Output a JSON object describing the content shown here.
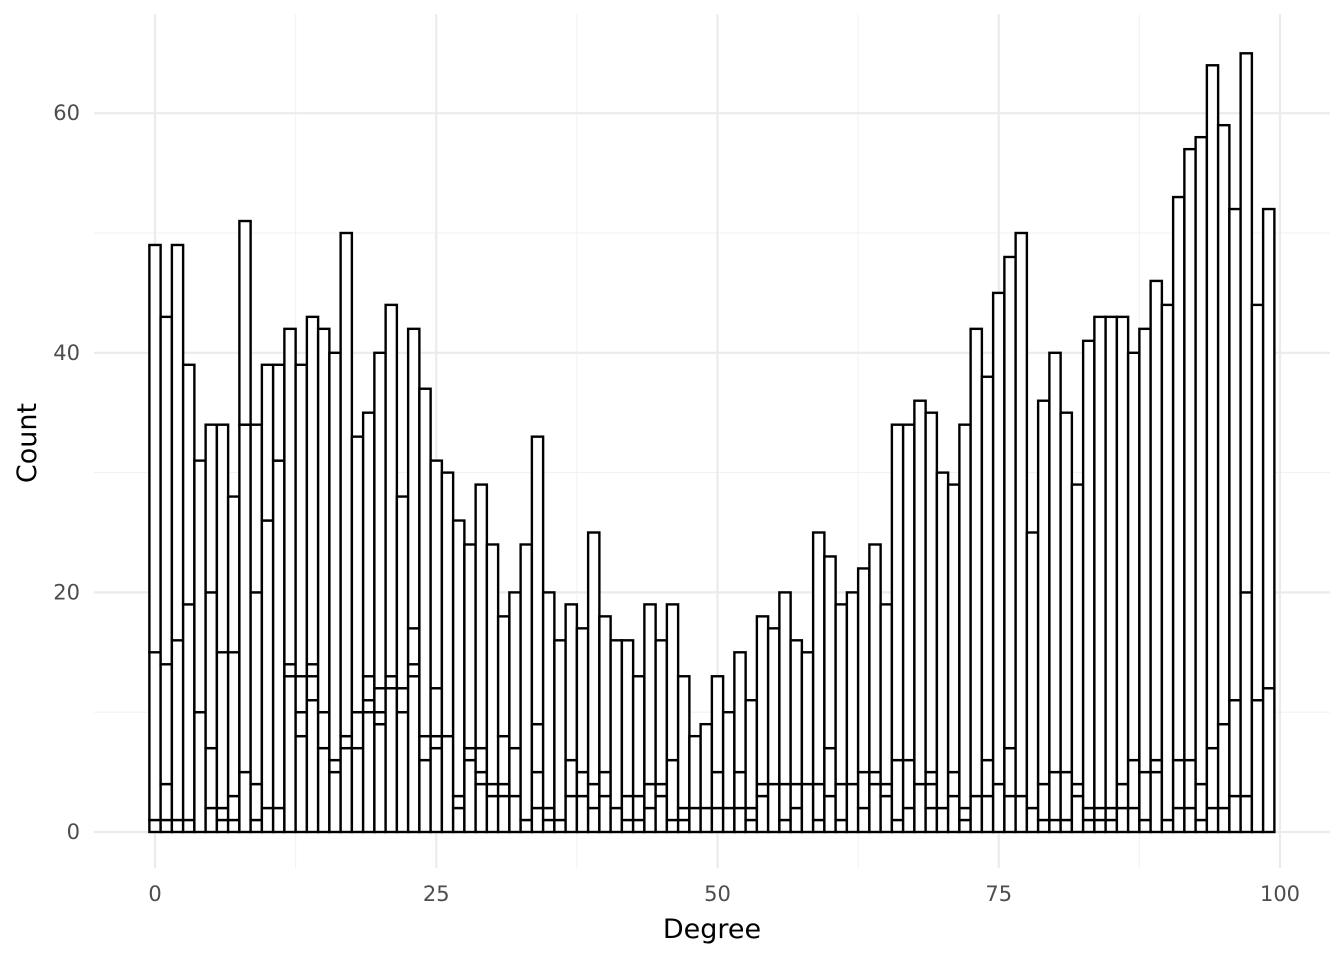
{
  "chart_data": {
    "type": "bar",
    "title": "",
    "xlabel": "Degree",
    "ylabel": "Count",
    "xlim": [
      -0.5,
      99.5
    ],
    "ylim": [
      0,
      65
    ],
    "x_ticks": [
      0,
      25,
      50,
      75,
      100
    ],
    "y_ticks": [
      0,
      20,
      40,
      60
    ],
    "grid": true,
    "legend": "none",
    "bar_fill": "#ffffff",
    "bar_outline": "#000000",
    "categories": [
      0,
      1,
      2,
      3,
      4,
      5,
      6,
      7,
      8,
      9,
      10,
      11,
      12,
      13,
      14,
      15,
      16,
      17,
      18,
      19,
      20,
      21,
      22,
      23,
      24,
      25,
      26,
      27,
      28,
      29,
      30,
      31,
      32,
      33,
      34,
      35,
      36,
      37,
      38,
      39,
      40,
      41,
      42,
      43,
      44,
      45,
      46,
      47,
      48,
      49,
      50,
      51,
      52,
      53,
      54,
      55,
      56,
      57,
      58,
      59,
      60,
      61,
      62,
      63,
      64,
      65,
      66,
      67,
      68,
      69,
      70,
      71,
      72,
      73,
      74,
      75,
      76,
      77,
      78,
      79,
      80,
      81,
      82,
      83,
      84,
      85,
      86,
      87,
      88,
      89,
      90,
      91,
      92,
      93,
      94,
      95,
      96,
      97,
      98,
      99
    ],
    "stack_boundaries": [
      [
        1,
        15,
        49
      ],
      [
        1,
        4,
        14,
        43
      ],
      [
        1,
        16,
        49
      ],
      [
        1,
        19,
        39
      ],
      [
        10,
        31
      ],
      [
        2,
        7,
        20,
        34
      ],
      [
        1,
        2,
        15,
        34
      ],
      [
        1,
        3,
        15,
        28
      ],
      [
        5,
        34,
        51
      ],
      [
        1,
        4,
        20,
        34
      ],
      [
        2,
        26,
        39
      ],
      [
        2,
        31,
        39
      ],
      [
        13,
        14,
        42
      ],
      [
        8,
        10,
        13,
        39
      ],
      [
        11,
        13,
        14,
        43
      ],
      [
        7,
        10,
        42
      ],
      [
        5,
        6,
        40
      ],
      [
        7,
        8,
        50
      ],
      [
        7,
        10,
        33
      ],
      [
        10,
        11,
        13,
        35
      ],
      [
        9,
        10,
        12,
        40
      ],
      [
        12,
        13,
        44
      ],
      [
        10,
        12,
        28
      ],
      [
        13,
        14,
        17,
        42
      ],
      [
        6,
        8,
        37
      ],
      [
        7,
        8,
        12,
        31
      ],
      [
        8,
        30
      ],
      [
        2,
        3,
        26
      ],
      [
        6,
        7,
        24
      ],
      [
        4,
        5,
        7,
        29
      ],
      [
        3,
        4,
        24
      ],
      [
        3,
        4,
        8,
        18
      ],
      [
        3,
        7,
        20
      ],
      [
        1,
        24
      ],
      [
        2,
        5,
        9,
        33
      ],
      [
        1,
        2,
        20
      ],
      [
        1,
        16
      ],
      [
        3,
        6,
        19
      ],
      [
        3,
        5,
        17
      ],
      [
        2,
        4,
        25
      ],
      [
        3,
        5,
        18
      ],
      [
        2,
        16
      ],
      [
        1,
        3,
        16
      ],
      [
        1,
        3,
        13
      ],
      [
        2,
        4,
        19
      ],
      [
        3,
        4,
        16
      ],
      [
        1,
        6,
        19
      ],
      [
        1,
        2,
        13
      ],
      [
        2,
        8
      ],
      [
        2,
        9
      ],
      [
        2,
        5,
        13
      ],
      [
        2,
        10
      ],
      [
        2,
        5,
        15
      ],
      [
        1,
        2,
        11
      ],
      [
        3,
        4,
        18
      ],
      [
        4,
        17
      ],
      [
        1,
        4,
        20
      ],
      [
        2,
        4,
        16
      ],
      [
        4,
        15
      ],
      [
        1,
        4,
        25
      ],
      [
        3,
        7,
        23
      ],
      [
        1,
        4,
        19
      ],
      [
        4,
        20
      ],
      [
        2,
        5,
        22
      ],
      [
        4,
        5,
        24
      ],
      [
        3,
        4,
        19
      ],
      [
        1,
        6,
        34
      ],
      [
        2,
        6,
        34
      ],
      [
        4,
        36
      ],
      [
        2,
        4,
        5,
        35
      ],
      [
        2,
        30
      ],
      [
        3,
        5,
        29
      ],
      [
        1,
        2,
        34
      ],
      [
        3,
        42
      ],
      [
        3,
        6,
        38
      ],
      [
        4,
        45
      ],
      [
        3,
        7,
        48
      ],
      [
        3,
        50
      ],
      [
        2,
        25
      ],
      [
        1,
        4,
        36
      ],
      [
        1,
        5,
        40
      ],
      [
        1,
        5,
        35
      ],
      [
        3,
        4,
        29
      ],
      [
        1,
        2,
        41
      ],
      [
        1,
        2,
        43
      ],
      [
        1,
        2,
        43
      ],
      [
        2,
        4,
        43
      ],
      [
        2,
        6,
        40
      ],
      [
        1,
        5,
        42
      ],
      [
        5,
        6,
        46
      ],
      [
        1,
        44
      ],
      [
        2,
        6,
        53
      ],
      [
        2,
        6,
        57
      ],
      [
        1,
        4,
        58
      ],
      [
        2,
        7,
        64
      ],
      [
        2,
        9,
        59
      ],
      [
        3,
        11,
        52
      ],
      [
        3,
        20,
        65
      ],
      [
        11,
        44
      ],
      [
        12,
        52
      ]
    ]
  }
}
